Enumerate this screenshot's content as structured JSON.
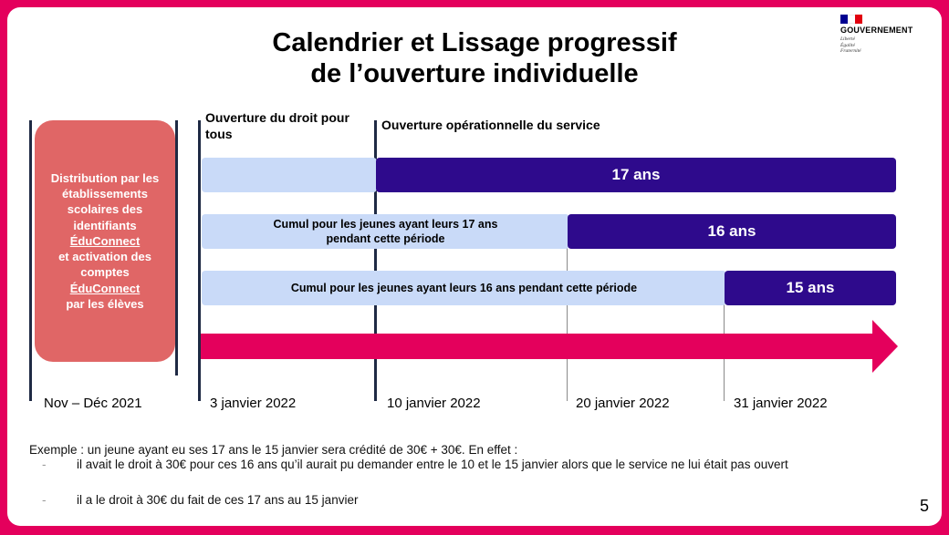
{
  "title_line1": "Calendrier et Lissage progressif",
  "title_line2": "de l’ouverture individuelle",
  "logo": {
    "name": "GOUVERNEMENT",
    "motto": [
      "Liberté",
      "Égalité",
      "Fraternité"
    ],
    "colors": [
      "#000091",
      "#ffffff",
      "#e1000f"
    ]
  },
  "headers": {
    "droit": "Ouverture du droit pour tous",
    "service": "Ouverture opérationnelle du service"
  },
  "distribution": {
    "line1": "Distribution par les établissements scolaires des identifiants",
    "link1": "ÉduConnect",
    "line2": "et activation des comptes",
    "link2": "ÉduConnect",
    "line3": "par les élèves"
  },
  "bars": {
    "age17": "17 ans",
    "cumul17": "Cumul pour les jeunes ayant leurs 17 ans pendant cette période",
    "age16": "16 ans",
    "cumul16": "Cumul pour les jeunes ayant leurs 16 ans pendant cette période",
    "age15": "15 ans"
  },
  "dates": {
    "d0": "Nov – Déc 2021",
    "d1": "3 janvier 2022",
    "d2": "10 janvier 2022",
    "d3": "20 janvier 2022",
    "d4": "31 janvier 2022"
  },
  "example": {
    "intro": "Exemple : un jeune ayant eu ses 17 ans le 15 janvier sera crédité de 30€ + 30€. En effet :",
    "bullet1": "il avait le droit à 30€ pour ces 16 ans qu’il aurait pu demander entre le 10 et le 15 janvier alors que le service ne lui était pas ouvert",
    "bullet2": "il a le droit à 30€ du fait de ces 17 ans au 15 janvier",
    "dash": "-"
  },
  "page_number": "5",
  "colors": {
    "frame": "#e4005c",
    "dark_bar": "#2e0a8c",
    "light_bar": "#c9daf8",
    "red_box": "#e06666",
    "arrow": "#e4005c"
  }
}
